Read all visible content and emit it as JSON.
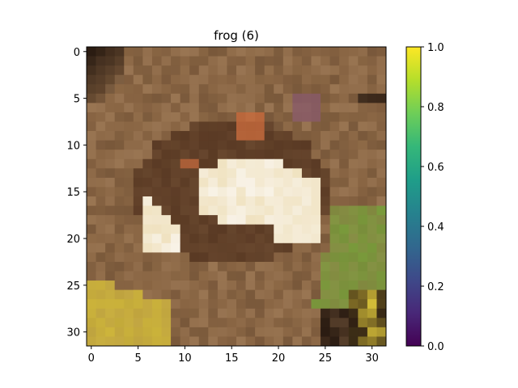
{
  "figure": {
    "title": "frog (6)",
    "image": {
      "rows": 32,
      "cols": 32,
      "description_tags": [
        "frog",
        "brown-background",
        "green-leaf",
        "yellow-leaf"
      ],
      "palette": {
        "dirt": "#8a6644",
        "dirt_dark": "#6e4f34",
        "dirt_light": "#a37f5c",
        "shadow": "#2b1c12",
        "frog_brown": "#5a3a24",
        "frog_orange": "#c86a3c",
        "frog_cream": "#f0e2c0",
        "frog_white": "#f8f2e6",
        "leaf_green": "#77a83a",
        "leaf_yellow": "#d9c23a",
        "purple_spot": "#8a5a70"
      }
    },
    "x_axis": {
      "ticks": [
        "0",
        "5",
        "10",
        "15",
        "20",
        "25",
        "30"
      ],
      "tick_values": [
        0,
        5,
        10,
        15,
        20,
        25,
        30
      ],
      "range": [
        -0.5,
        31.5
      ]
    },
    "y_axis": {
      "ticks": [
        "0",
        "5",
        "10",
        "15",
        "20",
        "25",
        "30"
      ],
      "tick_values": [
        0,
        5,
        10,
        15,
        20,
        25,
        30
      ],
      "range": [
        -0.5,
        31.5
      ],
      "inverted": true
    },
    "colorbar": {
      "colormap": "viridis",
      "ticks": [
        "0.0",
        "0.2",
        "0.4",
        "0.6",
        "0.8",
        "1.0"
      ],
      "tick_values": [
        0.0,
        0.2,
        0.4,
        0.6,
        0.8,
        1.0
      ],
      "range": [
        0.0,
        1.0
      ],
      "colors": [
        "#440154",
        "#482878",
        "#3e4989",
        "#31688e",
        "#26828e",
        "#1f9e89",
        "#35b779",
        "#6ece58",
        "#b5de2b",
        "#fde725"
      ]
    }
  }
}
